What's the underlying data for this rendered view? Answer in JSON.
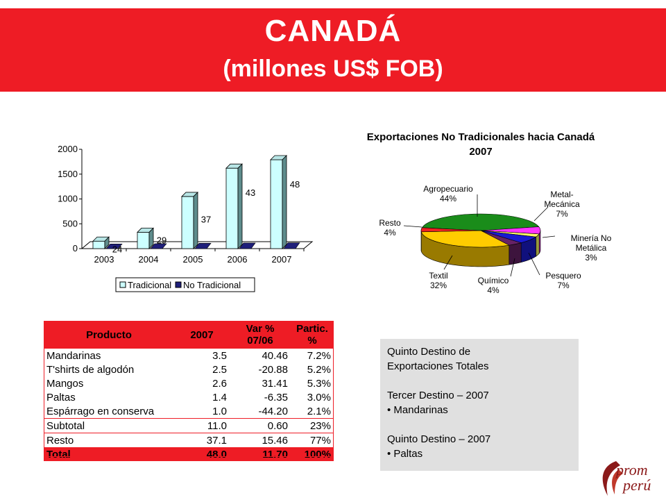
{
  "header": {
    "title": "CANADÁ",
    "subtitle": "(millones US$ FOB)"
  },
  "chart_data": [
    {
      "type": "bar",
      "categories": [
        "2003",
        "2004",
        "2005",
        "2006",
        "2007"
      ],
      "series": [
        {
          "name": "Tradicional",
          "values": [
            150,
            330,
            1050,
            1620,
            1790
          ],
          "color": "#ccffff"
        },
        {
          "name": "No Tradicional",
          "values": [
            24,
            29,
            37,
            43,
            48
          ],
          "color": "#1f1f7a"
        }
      ],
      "data_labels": [
        "24",
        "29",
        "37",
        "43",
        "48"
      ],
      "ylim": [
        0,
        2000
      ],
      "yticks": [
        "0",
        "500",
        "1000",
        "1500",
        "2000"
      ],
      "grid": false,
      "legend": "bottom",
      "title": "",
      "xlabel": "",
      "ylabel": ""
    },
    {
      "type": "pie",
      "title": "Exportaciones No Tradicionales hacia Canadá",
      "subtitle": "2007",
      "slices": [
        {
          "label": "Agropecuario",
          "value": 44,
          "pct": "44%",
          "color": "#1a8c1a"
        },
        {
          "label": "Metal-Mecánica",
          "label_lines": [
            "Metal-",
            "Mecánica"
          ],
          "value": 7,
          "pct": "7%",
          "color": "#ff33ff"
        },
        {
          "label": "Minería No Metálica",
          "label_lines": [
            "Minería No",
            "Metálica"
          ],
          "value": 3,
          "pct": "3%",
          "color": "#ffff66"
        },
        {
          "label": "Pesquero",
          "value": 7,
          "pct": "7%",
          "color": "#1a1ad0"
        },
        {
          "label": "Químico",
          "value": 4,
          "pct": "4%",
          "color": "#662266"
        },
        {
          "label": "Textil",
          "value": 32,
          "pct": "32%",
          "color": "#ffcc00"
        },
        {
          "label": "Resto",
          "value": 4,
          "pct": "4%",
          "color": "#ee2222"
        }
      ]
    }
  ],
  "table": {
    "headers": [
      "Producto",
      "2007",
      "Var %\n07/06",
      "Partic. %"
    ],
    "header_var_line1": "Var %",
    "header_var_line2": "07/06",
    "rows": [
      [
        "Mandarinas",
        "3.5",
        "40.46",
        "7.2%"
      ],
      [
        "T'shirts de algodón",
        "2.5",
        "-20.88",
        "5.2%"
      ],
      [
        "Mangos",
        "2.6",
        "31.41",
        "5.3%"
      ],
      [
        "Paltas",
        "1.4",
        "-6.35",
        "3.0%"
      ],
      [
        "Espárrago en conserva",
        "1.0",
        "-44.20",
        "2.1%"
      ]
    ],
    "subtotal": [
      "Subtotal",
      "11.0",
      "0.60",
      "23%"
    ],
    "resto": [
      "Resto",
      "37.1",
      "15.46",
      "77%"
    ],
    "total": [
      "Total",
      "48.0",
      "11.70",
      "100%"
    ]
  },
  "info": {
    "line1": "Quinto Destino de",
    "line2": "Exportaciones Totales",
    "line3": "Tercer Destino – 2007",
    "line4": "• Mandarinas",
    "line5": "Quinto Destino – 2007",
    "line6": "• Paltas"
  },
  "logo": {
    "text1": "prom",
    "text2": "perú"
  }
}
